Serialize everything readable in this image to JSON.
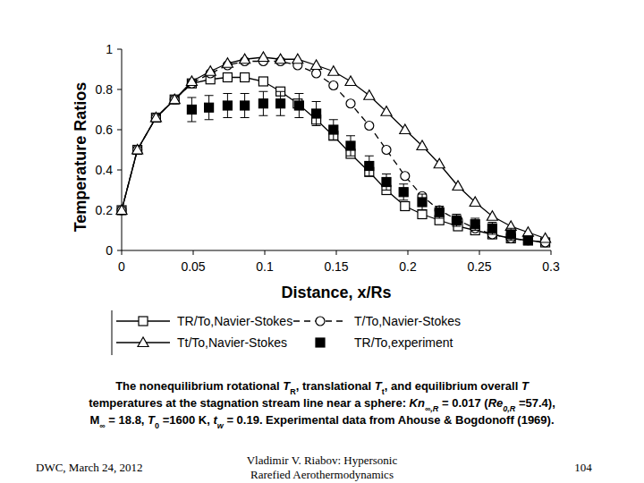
{
  "chart_data": {
    "type": "line",
    "x_label": "Distance, x/Rs",
    "y_label": "Temperature Ratios",
    "xlim": [
      0,
      0.3
    ],
    "xticks": [
      0,
      0.05,
      0.1,
      0.15,
      0.2,
      0.25,
      0.3
    ],
    "ylim": [
      0,
      1
    ],
    "yticks": [
      0,
      0.2,
      0.4,
      0.6,
      0.8,
      1
    ],
    "grid": false,
    "legend": "bottom",
    "series": [
      {
        "name": "TR/To,Navier-Stokes",
        "color": "#000000",
        "marker": "square",
        "line_style": "solid",
        "x": [
          0,
          0.011,
          0.024,
          0.037,
          0.049,
          0.062,
          0.074,
          0.086,
          0.099,
          0.111,
          0.123,
          0.136,
          0.148,
          0.16,
          0.173,
          0.185,
          0.198,
          0.21,
          0.222,
          0.235,
          0.247,
          0.259,
          0.272,
          0.284,
          0.296
        ],
        "values": [
          0.2,
          0.5,
          0.66,
          0.75,
          0.83,
          0.85,
          0.86,
          0.86,
          0.84,
          0.79,
          0.73,
          0.65,
          0.57,
          0.48,
          0.39,
          0.3,
          0.22,
          0.18,
          0.15,
          0.12,
          0.1,
          0.08,
          0.06,
          0.05,
          0.04
        ]
      },
      {
        "name": "T/To,Navier-Stokes",
        "color": "#000000",
        "marker": "circle",
        "line_style": "dashed",
        "x": [
          0,
          0.011,
          0.024,
          0.037,
          0.049,
          0.062,
          0.074,
          0.086,
          0.099,
          0.111,
          0.123,
          0.136,
          0.148,
          0.16,
          0.173,
          0.185,
          0.198,
          0.21,
          0.222,
          0.235,
          0.247,
          0.259,
          0.272,
          0.284,
          0.296
        ],
        "values": [
          0.2,
          0.5,
          0.66,
          0.75,
          0.83,
          0.88,
          0.92,
          0.94,
          0.94,
          0.94,
          0.92,
          0.88,
          0.82,
          0.73,
          0.62,
          0.5,
          0.37,
          0.27,
          0.2,
          0.15,
          0.11,
          0.08,
          0.06,
          0.05,
          0.04
        ]
      },
      {
        "name": "Tt/To,Navier-Stokes",
        "color": "#000000",
        "marker": "triangle",
        "line_style": "solid",
        "x": [
          0,
          0.011,
          0.024,
          0.037,
          0.049,
          0.062,
          0.074,
          0.086,
          0.099,
          0.111,
          0.123,
          0.136,
          0.148,
          0.16,
          0.173,
          0.185,
          0.198,
          0.21,
          0.222,
          0.235,
          0.247,
          0.259,
          0.272,
          0.284,
          0.296
        ],
        "values": [
          0.2,
          0.5,
          0.66,
          0.75,
          0.84,
          0.89,
          0.93,
          0.95,
          0.96,
          0.95,
          0.95,
          0.92,
          0.89,
          0.84,
          0.77,
          0.69,
          0.6,
          0.52,
          0.43,
          0.32,
          0.24,
          0.17,
          0.12,
          0.09,
          0.06
        ]
      },
      {
        "name": "TR/To,experiment",
        "color": "#000000",
        "marker": "filled-square",
        "line_style": "none",
        "x": [
          0.049,
          0.061,
          0.074,
          0.086,
          0.099,
          0.111,
          0.124,
          0.136,
          0.148,
          0.16,
          0.173,
          0.185,
          0.197,
          0.21,
          0.222,
          0.234,
          0.247,
          0.259,
          0.272,
          0.284
        ],
        "values": [
          0.7,
          0.71,
          0.72,
          0.72,
          0.73,
          0.73,
          0.72,
          0.68,
          0.6,
          0.52,
          0.42,
          0.34,
          0.29,
          0.24,
          0.19,
          0.15,
          0.13,
          0.11,
          0.08,
          0.05
        ],
        "errors": [
          0.06,
          0.06,
          0.06,
          0.06,
          0.06,
          0.06,
          0.06,
          0.06,
          0.05,
          0.05,
          0.05,
          0.04,
          0.04,
          0.04,
          0.03,
          0.03,
          0.03,
          0.03,
          0.03,
          0.02
        ]
      }
    ]
  },
  "caption": [
    [
      {
        "text": "The nonequilibrium rotational ",
        "style": "plain"
      },
      {
        "text": "T",
        "style": "italic"
      },
      {
        "text": "R",
        "style": "sub"
      },
      {
        "text": ", translational ",
        "style": "plain"
      },
      {
        "text": "T",
        "style": "italic"
      },
      {
        "text": "t",
        "style": "sub"
      },
      {
        "text": ", and equilibrium overall ",
        "style": "plain"
      },
      {
        "text": "T",
        "style": "italic"
      }
    ],
    [
      {
        "text": "temperatures at the stagnation stream line near a sphere: ",
        "style": "plain"
      },
      {
        "text": "Kn",
        "style": "italic"
      },
      {
        "text": "∞,R",
        "style": "italic-sub"
      },
      {
        "text": " = 0.017 (",
        "style": "plain"
      },
      {
        "text": "Re",
        "style": "italic"
      },
      {
        "text": "0,R",
        "style": "italic-sub"
      },
      {
        "text": " =57.4),",
        "style": "plain"
      }
    ],
    [
      {
        "text": "M",
        "style": "plain"
      },
      {
        "text": "∞",
        "style": "sub"
      },
      {
        "text": " = 18.8, ",
        "style": "plain"
      },
      {
        "text": "T",
        "style": "italic"
      },
      {
        "text": "0",
        "style": "sub"
      },
      {
        "text": " =1600 K, ",
        "style": "plain"
      },
      {
        "text": "t",
        "style": "italic"
      },
      {
        "text": "w",
        "style": "italic-sub"
      },
      {
        "text": " = 0.19. Experimental data from Ahouse & Bogdonoff (1969).",
        "style": "plain"
      }
    ]
  ],
  "footer": {
    "left": "DWC, March 24, 2012",
    "center": [
      "Vladimir V. Riabov: Hypersonic",
      "Rarefied Aerothermodynamics"
    ],
    "right": "104"
  }
}
